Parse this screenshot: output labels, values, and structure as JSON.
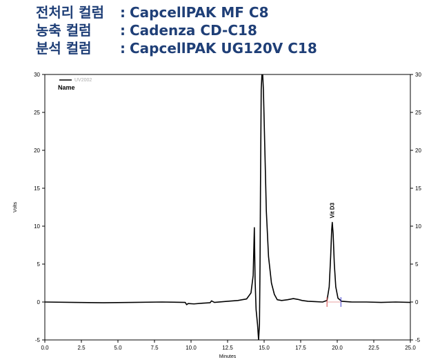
{
  "header": {
    "lines": [
      {
        "label": "전처리 컬럼",
        "colon": ":",
        "value": "CapcellPAK MF C8"
      },
      {
        "label": "농축 컬럼",
        "colon": ":",
        "value": "Cadenza CD-C18"
      },
      {
        "label": "분석 컬럼",
        "colon": ":",
        "value": "CapcellPAK UG120V C18"
      }
    ],
    "color": "#1f3f77"
  },
  "chart_data": {
    "type": "line",
    "xlabel": "Minutes",
    "ylabel": "Volts",
    "y2label": "",
    "xlim": [
      0.0,
      25.0
    ],
    "ylim": [
      -5,
      30
    ],
    "xticks": [
      "0.0",
      "2.5",
      "5.0",
      "7.5",
      "10.0",
      "12.5",
      "15.0",
      "17.5",
      "20.0",
      "22.5",
      "25.0"
    ],
    "yticks": [
      "-5",
      "0",
      "5",
      "10",
      "15",
      "20",
      "25",
      "30"
    ],
    "legend": {
      "series_label": "UV2002",
      "title": "Name",
      "placement": "top-left"
    },
    "grid": false,
    "series": [
      {
        "name": "UV2002",
        "color": "#000000",
        "x": [
          0.0,
          2.0,
          4.0,
          6.0,
          8.0,
          9.6,
          9.7,
          9.8,
          10.2,
          10.8,
          11.3,
          11.4,
          11.6,
          12.5,
          13.2,
          13.8,
          14.1,
          14.25,
          14.33,
          14.38,
          14.45,
          14.55,
          14.62,
          14.68,
          14.72,
          14.75,
          14.8,
          14.85,
          14.9,
          14.95,
          15.05,
          15.15,
          15.3,
          15.5,
          15.7,
          15.9,
          16.2,
          16.6,
          17.0,
          17.3,
          17.6,
          18.0,
          18.5,
          19.0,
          19.3,
          19.45,
          19.55,
          19.62,
          19.66,
          19.72,
          19.8,
          19.9,
          20.05,
          20.3,
          21.0,
          22.0,
          23.0,
          24.0,
          25.0
        ],
        "y": [
          0.0,
          -0.05,
          -0.1,
          -0.05,
          0.0,
          -0.05,
          -0.35,
          -0.2,
          -0.25,
          -0.15,
          -0.1,
          0.15,
          -0.05,
          0.1,
          0.2,
          0.4,
          1.2,
          3.5,
          9.8,
          3.0,
          -1.0,
          -3.0,
          -5.0,
          -3.0,
          5.0,
          15.0,
          28.0,
          30.0,
          30.0,
          28.0,
          20.0,
          12.0,
          6.0,
          2.5,
          1.0,
          0.3,
          0.2,
          0.3,
          0.45,
          0.35,
          0.2,
          0.1,
          0.05,
          0.0,
          0.2,
          2.0,
          6.0,
          9.5,
          10.5,
          9.0,
          5.0,
          2.0,
          0.5,
          0.1,
          0.0,
          0.0,
          -0.05,
          0.0,
          -0.05
        ]
      }
    ],
    "annotations": [
      {
        "text": "Vit D3",
        "x": 19.65,
        "y": 10.5
      }
    ],
    "integration_marks": [
      {
        "x": 19.3,
        "y": 0.0,
        "color": "#d04040"
      },
      {
        "x": 20.25,
        "y": 0.0,
        "color": "#4040d0"
      }
    ]
  }
}
